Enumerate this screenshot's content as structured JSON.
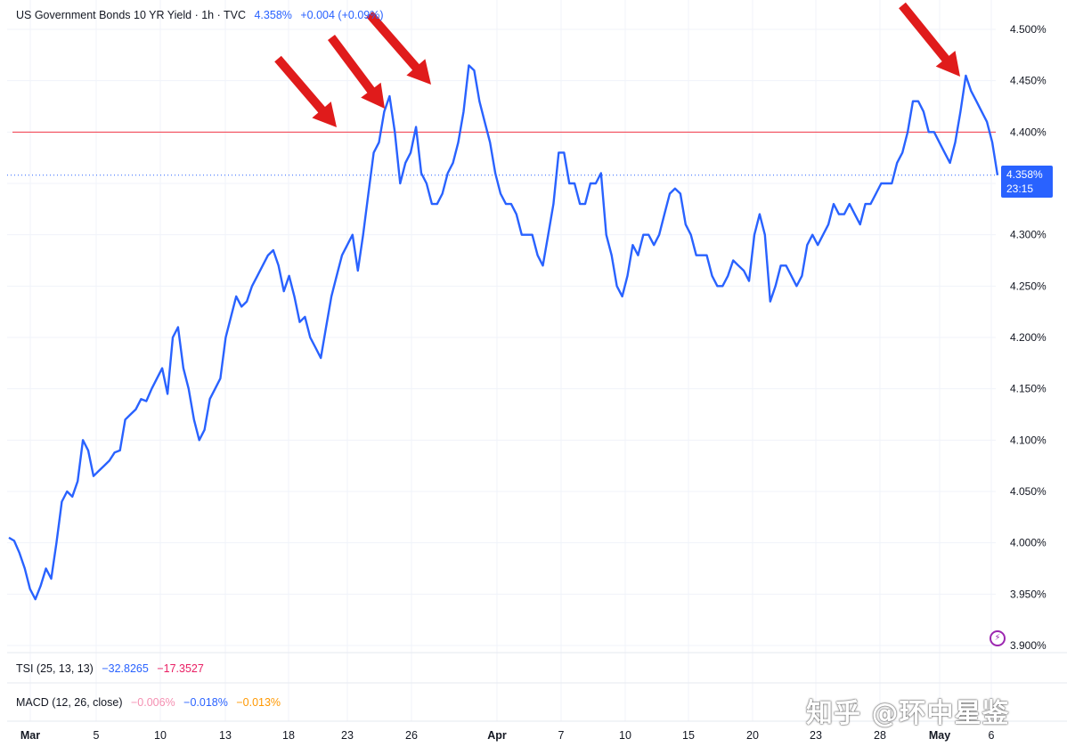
{
  "header": {
    "symbol": "US Government Bonds 10 YR Yield · 1h · TVC",
    "price": "4.358%",
    "change": "+0.004 (+0.09%)"
  },
  "price_tag": {
    "price": "4.358%",
    "countdown": "23:15"
  },
  "indicators": {
    "tsi": {
      "label": "TSI (25, 13, 13)",
      "value1": "−32.8265",
      "value2": "−17.3527"
    },
    "macd": {
      "label": "MACD (12, 26, close)",
      "value1": "−0.006%",
      "value2": "−0.018%",
      "value3": "−0.013%"
    }
  },
  "watermark": "知乎 @环中星鉴",
  "colors": {
    "line": "#2962ff",
    "resistance": "#f23645",
    "arrows": "#e01b1b"
  },
  "chart_data": {
    "type": "line",
    "title": "US Government Bonds 10 YR Yield · 1h · TVC",
    "x_ticks": [
      "Mar",
      "5",
      "10",
      "13",
      "18",
      "23",
      "26",
      "Apr",
      "7",
      "10",
      "15",
      "20",
      "23",
      "28",
      "May",
      "6"
    ],
    "y_ticks": [
      "3.900%",
      "3.950%",
      "4.000%",
      "4.050%",
      "4.100%",
      "4.150%",
      "4.200%",
      "4.250%",
      "4.300%",
      "4.350%",
      "4.400%",
      "4.450%",
      "4.500%"
    ],
    "ylim": [
      3.9,
      4.5
    ],
    "resistance_level": 4.4,
    "last_value": 4.358,
    "grid": true,
    "series": [
      {
        "values": [
          4.005,
          4.002,
          3.99,
          3.975,
          3.955,
          3.945,
          3.958,
          3.975,
          3.965,
          4.0,
          4.04,
          4.05,
          4.045,
          4.06,
          4.1,
          4.09,
          4.065,
          4.07,
          4.075,
          4.08,
          4.088,
          4.09,
          4.12,
          4.125,
          4.13,
          4.14,
          4.138,
          4.15,
          4.16,
          4.17,
          4.145,
          4.2,
          4.21,
          4.17,
          4.15,
          4.12,
          4.1,
          4.11,
          4.14,
          4.15,
          4.16,
          4.2,
          4.22,
          4.24,
          4.23,
          4.235,
          4.25,
          4.26,
          4.27,
          4.28,
          4.285,
          4.27,
          4.245,
          4.26,
          4.24,
          4.215,
          4.22,
          4.2,
          4.19,
          4.18,
          4.21,
          4.24,
          4.26,
          4.28,
          4.29,
          4.3,
          4.265,
          4.3,
          4.34,
          4.38,
          4.39,
          4.42,
          4.435,
          4.4,
          4.35,
          4.37,
          4.38,
          4.405,
          4.36,
          4.35,
          4.33,
          4.33,
          4.34,
          4.36,
          4.37,
          4.39,
          4.42,
          4.465,
          4.46,
          4.43,
          4.41,
          4.39,
          4.36,
          4.34,
          4.33,
          4.33,
          4.32,
          4.3,
          4.3,
          4.3,
          4.28,
          4.27,
          4.3,
          4.33,
          4.38,
          4.38,
          4.35,
          4.35,
          4.33,
          4.33,
          4.35,
          4.35,
          4.36,
          4.3,
          4.28,
          4.25,
          4.24,
          4.26,
          4.29,
          4.28,
          4.3,
          4.3,
          4.29,
          4.3,
          4.32,
          4.34,
          4.345,
          4.34,
          4.31,
          4.3,
          4.28,
          4.28,
          4.28,
          4.26,
          4.25,
          4.25,
          4.26,
          4.275,
          4.27,
          4.265,
          4.255,
          4.3,
          4.32,
          4.3,
          4.235,
          4.25,
          4.27,
          4.27,
          4.26,
          4.25,
          4.26,
          4.29,
          4.3,
          4.29,
          4.3,
          4.31,
          4.33,
          4.32,
          4.32,
          4.33,
          4.32,
          4.31,
          4.33,
          4.33,
          4.34,
          4.35,
          4.35,
          4.35,
          4.37,
          4.38,
          4.4,
          4.43,
          4.43,
          4.42,
          4.4,
          4.4,
          4.39,
          4.38,
          4.37,
          4.39,
          4.42,
          4.455,
          4.44,
          4.43,
          4.42,
          4.41,
          4.39,
          4.358
        ]
      }
    ],
    "annotations": [
      "red arrows marking peaks near the 4.400% level"
    ]
  }
}
